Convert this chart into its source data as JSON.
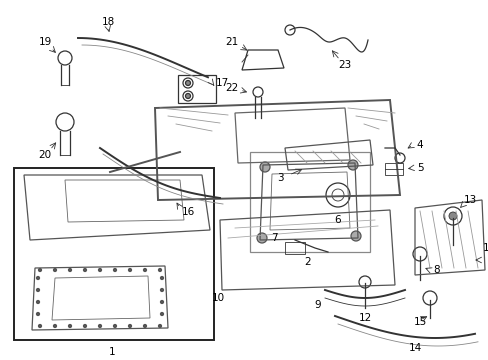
{
  "background_color": "#ffffff",
  "line_color": "#333333",
  "label_fontsize": 7.5,
  "lw_thick": 1.4,
  "lw_med": 0.9,
  "lw_thin": 0.6
}
